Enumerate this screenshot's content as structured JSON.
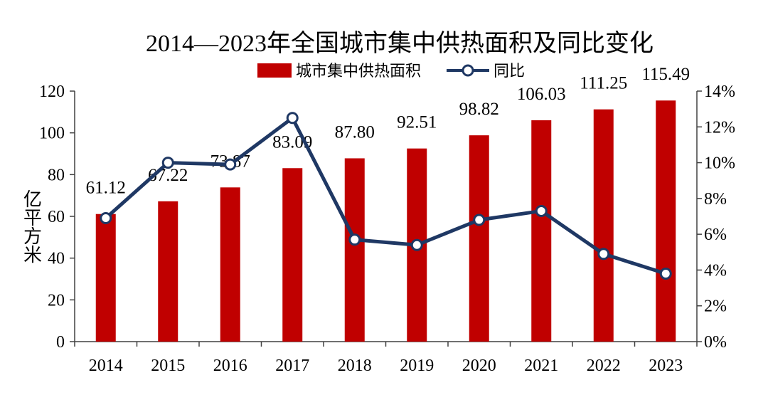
{
  "chart_data": {
    "type": "bar+line",
    "title": "2014—2023年全国城市集中供热面积及同比变化",
    "ylabel": "亿平方米",
    "y2label": "",
    "categories": [
      "2014",
      "2015",
      "2016",
      "2017",
      "2018",
      "2019",
      "2020",
      "2021",
      "2022",
      "2023"
    ],
    "series": [
      {
        "name": "城市集中供热面积",
        "kind": "bar",
        "axis": "left",
        "values": [
          61.12,
          67.22,
          73.87,
          83.09,
          87.8,
          92.51,
          98.82,
          106.03,
          111.25,
          115.49
        ],
        "labels": [
          "61.12",
          "67.22",
          "73.87",
          "83.09",
          "87.80",
          "92.51",
          "98.82",
          "106.03",
          "111.25",
          "115.49"
        ]
      },
      {
        "name": "同比",
        "kind": "line",
        "axis": "right",
        "values": [
          6.9,
          10.0,
          9.9,
          12.5,
          5.7,
          5.4,
          6.8,
          7.3,
          4.9,
          3.8
        ]
      }
    ],
    "ylim": [
      0,
      120
    ],
    "yticks": [
      "0",
      "20",
      "40",
      "60",
      "80",
      "100",
      "120"
    ],
    "y2lim": [
      0,
      14
    ],
    "y2ticks": [
      "0%",
      "2%",
      "4%",
      "6%",
      "8%",
      "10%",
      "12%",
      "14%"
    ],
    "legend_position": "top-center",
    "grid": false,
    "colors": {
      "bar": "#C00000",
      "line": "#1F3864",
      "marker_fill": "#FFFFFF"
    }
  }
}
